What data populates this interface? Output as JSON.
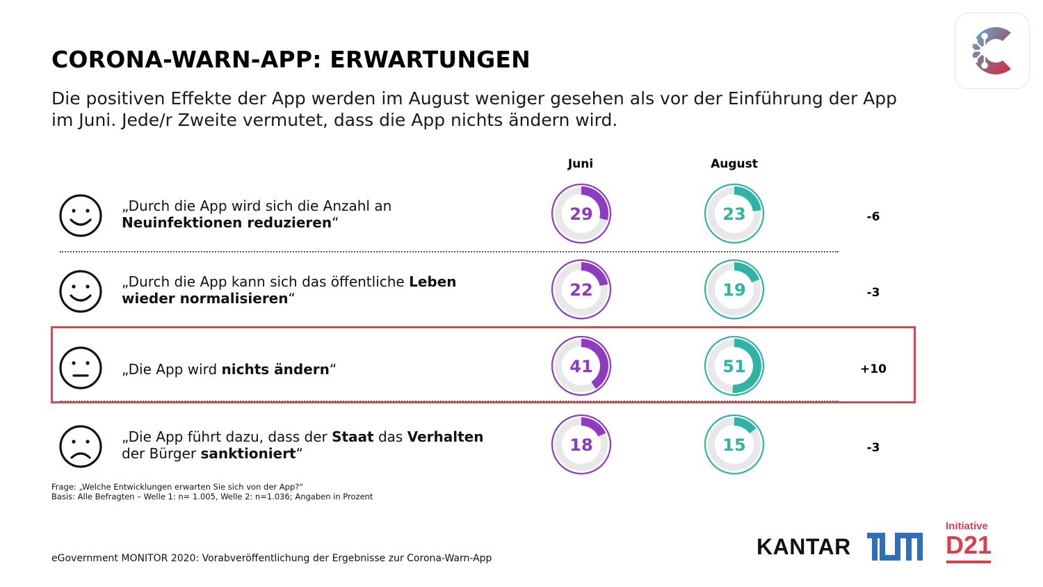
{
  "header": {
    "title": "CORONA-WARN-APP: ERWARTUNGEN",
    "subtitle": "Die positiven Effekte der App werden im August weniger gesehen als vor der Einführung der App im Juni. Jede/r Zweite vermutet, dass die App nichts ändern wird."
  },
  "columns": {
    "juni": "Juni",
    "august": "August"
  },
  "rows": [
    {
      "face": "smiley-icon",
      "parts": [
        {
          "t": "„Durch die App wird sich die Anzahl an "
        },
        {
          "t": "Neuinfektionen reduzieren",
          "b": true
        },
        {
          "t": "“"
        }
      ],
      "juni": 29,
      "august": 23,
      "diff": "-6"
    },
    {
      "face": "smiley-icon",
      "parts": [
        {
          "t": "„Durch die App kann sich das öffentliche "
        },
        {
          "t": "Leben wieder normalisieren",
          "b": true
        },
        {
          "t": "“"
        }
      ],
      "juni": 22,
      "august": 19,
      "diff": "-3"
    },
    {
      "face": "neutral-face-icon",
      "parts": [
        {
          "t": "„Die App wird "
        },
        {
          "t": "nichts ändern",
          "b": true
        },
        {
          "t": "“"
        }
      ],
      "juni": 41,
      "august": 51,
      "diff": "+10"
    },
    {
      "face": "sad-face-icon",
      "parts": [
        {
          "t": "„Die App führt dazu, dass der "
        },
        {
          "t": "Staat",
          "b": true
        },
        {
          "t": " das "
        },
        {
          "t": "Verhalten",
          "b": true
        },
        {
          "t": " der Bürger "
        },
        {
          "t": "sanktioniert",
          "b": true
        },
        {
          "t": "“"
        }
      ],
      "juni": 18,
      "august": 15,
      "diff": "-3"
    }
  ],
  "chart_data": {
    "type": "donut",
    "categories": [
      "„Durch die App wird sich die Anzahl an Neuinfektionen reduzieren“",
      "„Durch die App kann sich das öffentliche Leben wieder normalisieren“",
      "„Die App wird nichts ändern“",
      "„Die App führt dazu, dass der Staat das Verhalten der Bürger sanktioniert“"
    ],
    "series": [
      {
        "name": "Juni",
        "values": [
          29,
          22,
          41,
          18
        ],
        "color": "#8e3bbf"
      },
      {
        "name": "August",
        "values": [
          23,
          19,
          51,
          15
        ],
        "color": "#30b3a4"
      }
    ],
    "differences": [
      "-6",
      "-3",
      "+10",
      "-3"
    ],
    "unit": "Prozent",
    "highlighted_row": 2
  },
  "footnote": {
    "question": "Frage: „Welche Entwicklungen erwarten Sie sich von der App?“",
    "basis": "Basis: Alle Befragten – Welle 1: n= 1.005, Welle 2: n=1.036; Angaben in Prozent"
  },
  "source": "eGovernment MONITOR 2020: Vorabveröffentlichung der Ergebnisse zur Corona-Warn-App",
  "logos": {
    "kantar": "KANTAR",
    "tum": "TUM",
    "d21_initiative": "Initiative",
    "d21": "D21"
  },
  "colors": {
    "juni": "#8e3bbf",
    "august": "#30b3a4",
    "highlight": "#e04050",
    "d21": "#d84050",
    "tum": "#2f6fb8"
  }
}
